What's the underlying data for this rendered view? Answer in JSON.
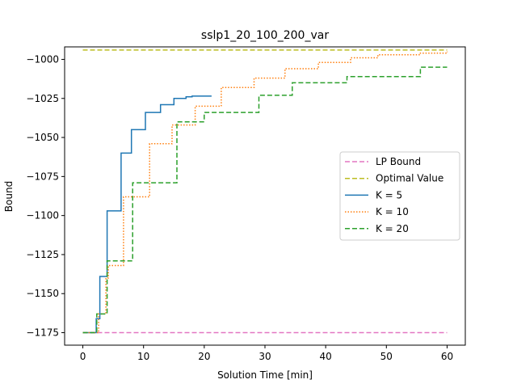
{
  "chart_data": {
    "type": "line",
    "title": "sslp1_20_100_200_var",
    "xlabel": "Solution Time [min]",
    "ylabel": "Bound",
    "xlim": [
      -3,
      63
    ],
    "ylim": [
      -1183,
      -992
    ],
    "xticks": [
      0,
      10,
      20,
      30,
      40,
      50,
      60
    ],
    "yticks": [
      -1175,
      -1150,
      -1125,
      -1100,
      -1075,
      -1050,
      -1025,
      -1000
    ],
    "legend_position": "center-right",
    "series": [
      {
        "name": "LP Bound",
        "color": "#e377c2",
        "style": "dashed",
        "step": false,
        "points": [
          [
            0,
            -1175
          ],
          [
            60,
            -1175
          ]
        ]
      },
      {
        "name": "Optimal Value",
        "color": "#bcbd22",
        "style": "dashed",
        "step": false,
        "points": [
          [
            0,
            -994
          ],
          [
            60,
            -994
          ]
        ]
      },
      {
        "name": "K = 5",
        "color": "#1f77b4",
        "style": "solid",
        "step": true,
        "points": [
          [
            0,
            -1175
          ],
          [
            2,
            -1175
          ],
          [
            2.2,
            -1166
          ],
          [
            2.8,
            -1139
          ],
          [
            4,
            -1097
          ],
          [
            6.3,
            -1060
          ],
          [
            8,
            -1045
          ],
          [
            10.3,
            -1034
          ],
          [
            12.8,
            -1029
          ],
          [
            15,
            -1025
          ],
          [
            17,
            -1024
          ],
          [
            18,
            -1023.5
          ],
          [
            21.2,
            -1023.5
          ]
        ]
      },
      {
        "name": "K = 10",
        "color": "#ff7f0e",
        "style": "dotted",
        "step": true,
        "points": [
          [
            0,
            -1175
          ],
          [
            2.4,
            -1175
          ],
          [
            2.6,
            -1163
          ],
          [
            3.8,
            -1140
          ],
          [
            4.2,
            -1132
          ],
          [
            6.7,
            -1088
          ],
          [
            11,
            -1054
          ],
          [
            14.7,
            -1042
          ],
          [
            18.5,
            -1030
          ],
          [
            22.8,
            -1018
          ],
          [
            28.2,
            -1012
          ],
          [
            33.3,
            -1006
          ],
          [
            38.8,
            -1002
          ],
          [
            44.1,
            -999
          ],
          [
            48.6,
            -997
          ],
          [
            55.4,
            -996
          ],
          [
            60,
            -995
          ]
        ]
      },
      {
        "name": "K = 20",
        "color": "#2ca02c",
        "style": "dashed",
        "step": true,
        "points": [
          [
            0,
            -1175
          ],
          [
            2,
            -1175
          ],
          [
            2.3,
            -1163
          ],
          [
            4,
            -1129
          ],
          [
            8.2,
            -1079
          ],
          [
            15.5,
            -1040
          ],
          [
            20,
            -1034
          ],
          [
            29,
            -1023
          ],
          [
            34.5,
            -1015
          ],
          [
            43.5,
            -1011
          ],
          [
            55.6,
            -1005
          ],
          [
            60,
            -1005
          ]
        ]
      }
    ],
    "tick_labels_y": [
      "−1175",
      "−1150",
      "−1125",
      "−1100",
      "−1075",
      "−1050",
      "−1025",
      "−1000"
    ],
    "tick_labels_x": [
      "0",
      "10",
      "20",
      "30",
      "40",
      "50",
      "60"
    ]
  }
}
